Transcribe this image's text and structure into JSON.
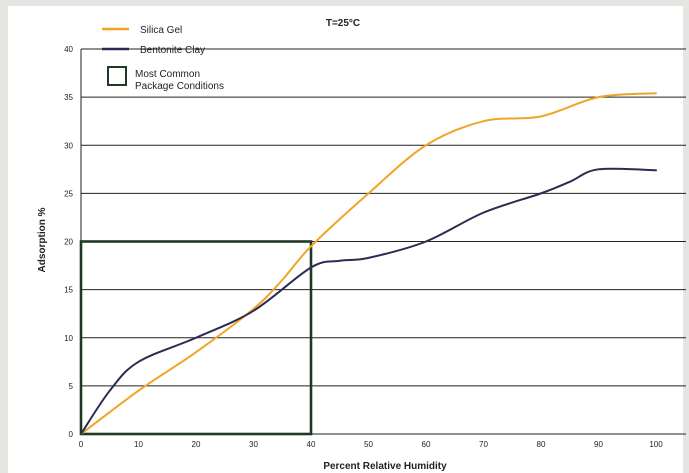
{
  "colors": {
    "silica": "#f0a526",
    "bentonite": "#2e2a52",
    "box": "#1f3a24",
    "grid": "#222222"
  },
  "chart_data": {
    "type": "line",
    "title": "T=25°C",
    "xlabel": "Percent Relative Humidity",
    "ylabel": "Adsorption %",
    "xlim": [
      0,
      100
    ],
    "ylim": [
      0,
      40
    ],
    "x_ticks": [
      0,
      10,
      20,
      30,
      40,
      50,
      60,
      70,
      80,
      90,
      100
    ],
    "y_ticks": [
      0,
      5,
      10,
      15,
      20,
      25,
      30,
      35,
      40
    ],
    "grid": "horizontal",
    "legend_position": "top-left",
    "series": [
      {
        "name": "Silica Gel",
        "color": "#f0a526",
        "x": [
          0,
          10,
          20,
          30,
          35,
          40,
          50,
          60,
          70,
          80,
          90,
          100
        ],
        "y": [
          0,
          4.5,
          8.5,
          13,
          16,
          19.5,
          25,
          30,
          32.5,
          33,
          35,
          35.4
        ]
      },
      {
        "name": "Bentonite Clay",
        "color": "#2e2a52",
        "x": [
          0,
          5,
          10,
          20,
          30,
          40,
          45,
          50,
          60,
          70,
          80,
          85,
          90,
          100
        ],
        "y": [
          0,
          4.5,
          7.5,
          10,
          12.8,
          17.3,
          18,
          18.3,
          20,
          23,
          25,
          26.2,
          27.5,
          27.4
        ]
      }
    ],
    "annotations": [
      {
        "name": "Most Common Package Conditions",
        "type": "rect",
        "x_range": [
          0,
          40
        ],
        "y_range": [
          0,
          20
        ]
      }
    ]
  }
}
